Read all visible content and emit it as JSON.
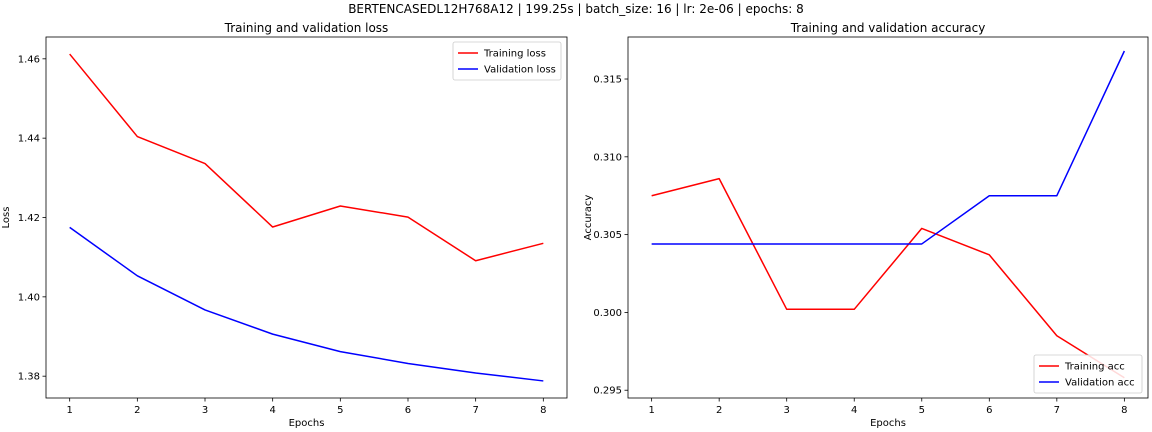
{
  "figure": {
    "suptitle": "BERTENCASEDL12H768A12 | 199.25s | batch_size: 16 | lr: 2e-06 | epochs: 8"
  },
  "chart_data": [
    {
      "type": "line",
      "title": "Training and validation loss",
      "xlabel": "Epochs",
      "ylabel": "Loss",
      "x": [
        1,
        2,
        3,
        4,
        5,
        6,
        7,
        8
      ],
      "xlim": [
        0.65,
        8.35
      ],
      "ylim": [
        1.3745,
        1.4655
      ],
      "yticks": [
        1.38,
        1.4,
        1.42,
        1.44,
        1.46
      ],
      "ytick_labels": [
        "1.38",
        "1.40",
        "1.42",
        "1.44",
        "1.46"
      ],
      "xtick_labels": [
        "1",
        "2",
        "3",
        "4",
        "5",
        "6",
        "7",
        "8"
      ],
      "legend_position": "upper right",
      "grid": false,
      "series": [
        {
          "name": "Training loss",
          "color": "#ff0000",
          "values": [
            1.4612,
            1.4404,
            1.4336,
            1.4176,
            1.4229,
            1.4201,
            1.4091,
            1.4135
          ]
        },
        {
          "name": "Validation loss",
          "color": "#0000ff",
          "values": [
            1.4175,
            1.4053,
            1.3967,
            1.3906,
            1.3862,
            1.3832,
            1.3808,
            1.3788
          ]
        }
      ]
    },
    {
      "type": "line",
      "title": "Training and validation accuracy",
      "xlabel": "Epochs",
      "ylabel": "Accuracy",
      "x": [
        1,
        2,
        3,
        4,
        5,
        6,
        7,
        8
      ],
      "xlim": [
        0.65,
        8.35
      ],
      "ylim": [
        0.2945,
        0.3177
      ],
      "yticks": [
        0.295,
        0.3,
        0.305,
        0.31,
        0.315
      ],
      "ytick_labels": [
        "0.295",
        "0.300",
        "0.305",
        "0.310",
        "0.315"
      ],
      "xtick_labels": [
        "1",
        "2",
        "3",
        "4",
        "5",
        "6",
        "7",
        "8"
      ],
      "legend_position": "lower right",
      "grid": false,
      "series": [
        {
          "name": "Training acc",
          "color": "#ff0000",
          "values": [
            0.3075,
            0.3086,
            0.3002,
            0.3002,
            0.3054,
            0.3037,
            0.2985,
            0.2958
          ]
        },
        {
          "name": "Validation acc",
          "color": "#0000ff",
          "values": [
            0.3044,
            0.3044,
            0.3044,
            0.3044,
            0.3044,
            0.3075,
            0.3075,
            0.3168
          ]
        }
      ]
    }
  ]
}
